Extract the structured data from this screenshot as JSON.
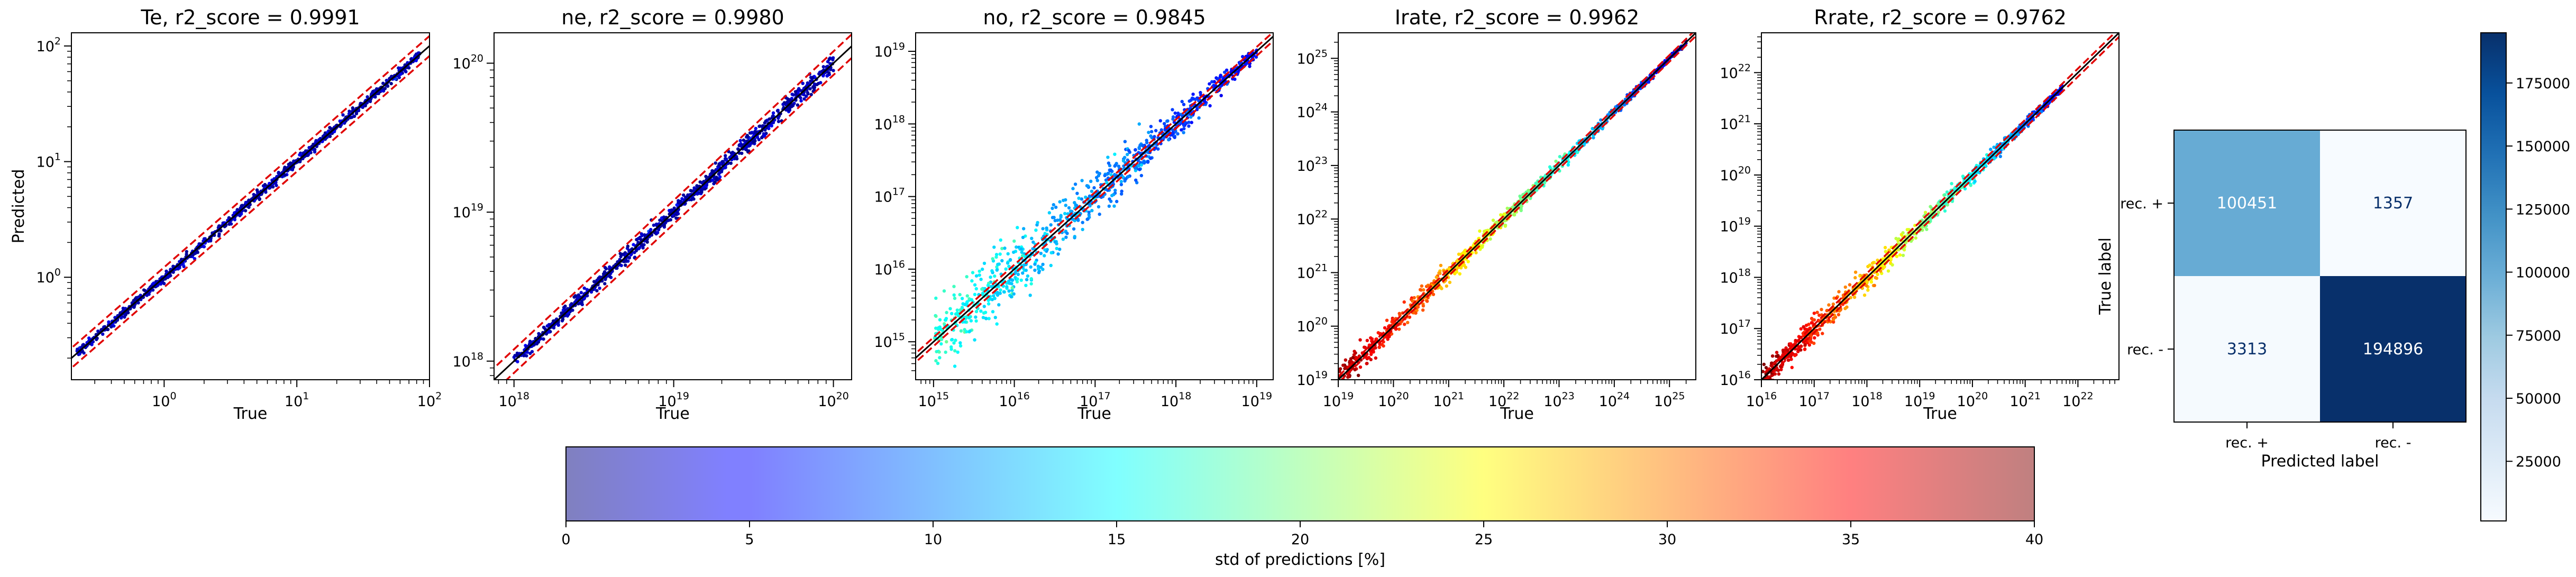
{
  "chart_data": [
    {
      "type": "scatter",
      "title": "Te, r2_score = 0.9991",
      "xlabel": "True",
      "ylabel": "Predicted",
      "xscale": "log",
      "yscale": "log",
      "xlim": [
        0.2,
        100
      ],
      "ylim": [
        0.13,
        130
      ],
      "xticks": [
        {
          "b": "10",
          "e": "0"
        },
        {
          "b": "10",
          "e": "1"
        },
        {
          "b": "10",
          "e": "2"
        }
      ],
      "yticks": [
        {
          "b": "10",
          "e": "0"
        },
        {
          "b": "10",
          "e": "1"
        },
        {
          "b": "10",
          "e": "2"
        }
      ],
      "band_factor": 1.22,
      "data_range": [
        0.22,
        85
      ],
      "spread_low": 0.03,
      "spread_high": 0.03,
      "std_low": 0.4,
      "std_high": 0.4
    },
    {
      "type": "scatter",
      "title": "ne, r2_score = 0.9980",
      "xlabel": "True",
      "ylabel": "",
      "xscale": "log",
      "yscale": "log",
      "xlim": [
        7.5e+17,
        1.3e+20
      ],
      "ylim": [
        7.5e+17,
        1.6e+20
      ],
      "xticks": [
        {
          "b": "10",
          "e": "18"
        },
        {
          "b": "10",
          "e": "19"
        },
        {
          "b": "10",
          "e": "20"
        }
      ],
      "yticks": [
        {
          "b": "10",
          "e": "18"
        },
        {
          "b": "10",
          "e": "19"
        },
        {
          "b": "10",
          "e": "20"
        }
      ],
      "band_factor": 1.2,
      "data_range": [
        1e+18,
        1e+20
      ],
      "spread_low": 0.03,
      "spread_high": 0.05,
      "std_low": 0.3,
      "std_high": 0.3
    },
    {
      "type": "scatter",
      "title": "no, r2_score = 0.9845",
      "xlabel": "True",
      "ylabel": "",
      "xscale": "log",
      "yscale": "log",
      "xlim": [
        600000000000000.0,
        1.6e+19
      ],
      "ylim": [
        300000000000000.0,
        1.8e+19
      ],
      "xticks": [
        {
          "b": "10",
          "e": "15"
        },
        {
          "b": "10",
          "e": "16"
        },
        {
          "b": "10",
          "e": "17"
        },
        {
          "b": "10",
          "e": "18"
        },
        {
          "b": "10",
          "e": "19"
        }
      ],
      "yticks": [
        {
          "b": "10",
          "e": "15"
        },
        {
          "b": "10",
          "e": "16"
        },
        {
          "b": "10",
          "e": "17"
        },
        {
          "b": "10",
          "e": "18"
        },
        {
          "b": "10",
          "e": "19"
        }
      ],
      "band_factor": 1.15,
      "data_range": [
        1000000000000000.0,
        1e+19
      ],
      "spread_low": 0.45,
      "spread_high": 0.07,
      "std_low": 15,
      "std_high": 3
    },
    {
      "type": "scatter",
      "title": "Irate, r2_score = 0.9962",
      "xlabel": "True",
      "ylabel": "",
      "xscale": "log",
      "yscale": "log",
      "xlim": [
        1e+19,
        3e+25
      ],
      "ylim": [
        1e+19,
        3e+25
      ],
      "xticks": [
        {
          "b": "10",
          "e": "19"
        },
        {
          "b": "10",
          "e": "20"
        },
        {
          "b": "10",
          "e": "21"
        },
        {
          "b": "10",
          "e": "22"
        },
        {
          "b": "10",
          "e": "23"
        },
        {
          "b": "10",
          "e": "24"
        },
        {
          "b": "10",
          "e": "25"
        }
      ],
      "yticks": [
        {
          "b": "10",
          "e": "19"
        },
        {
          "b": "10",
          "e": "20"
        },
        {
          "b": "10",
          "e": "21"
        },
        {
          "b": "10",
          "e": "22"
        },
        {
          "b": "10",
          "e": "23"
        },
        {
          "b": "10",
          "e": "24"
        },
        {
          "b": "10",
          "e": "25"
        }
      ],
      "band_factor": 1.15,
      "data_range": [
        1e+19,
        2e+25
      ],
      "spread_low": 0.2,
      "spread_high": 0.03,
      "std_low": 38,
      "std_high": 1
    },
    {
      "type": "scatter",
      "title": "Rrate, r2_score = 0.9762",
      "xlabel": "True",
      "ylabel": "",
      "xscale": "log",
      "yscale": "log",
      "xlim": [
        1e+16,
        6e+22
      ],
      "ylim": [
        1e+16,
        6e+22
      ],
      "xticks": [
        {
          "b": "10",
          "e": "16"
        },
        {
          "b": "10",
          "e": "17"
        },
        {
          "b": "10",
          "e": "18"
        },
        {
          "b": "10",
          "e": "19"
        },
        {
          "b": "10",
          "e": "20"
        },
        {
          "b": "10",
          "e": "21"
        },
        {
          "b": "10",
          "e": "22"
        }
      ],
      "yticks": [
        {
          "b": "10",
          "e": "16"
        },
        {
          "b": "10",
          "e": "17"
        },
        {
          "b": "10",
          "e": "18"
        },
        {
          "b": "10",
          "e": "19"
        },
        {
          "b": "10",
          "e": "20"
        },
        {
          "b": "10",
          "e": "21"
        },
        {
          "b": "10",
          "e": "22"
        }
      ],
      "band_factor": 1.2,
      "data_range": [
        1e+16,
        5e+21
      ],
      "spread_low": 0.25,
      "spread_high": 0.05,
      "std_low": 38,
      "std_high": 3
    },
    {
      "type": "heatmap",
      "title": "",
      "xlabel": "Predicted label",
      "ylabel": "True label",
      "x_categories": [
        "rec. +",
        "rec. -"
      ],
      "y_categories": [
        "rec. +",
        "rec. -"
      ],
      "values": [
        [
          100451,
          1357
        ],
        [
          3313,
          194896
        ]
      ],
      "value_labels": [
        [
          "100451",
          "1357"
        ],
        [
          "3313",
          "194896"
        ]
      ],
      "colorbar": {
        "range": [
          1357,
          194896
        ],
        "ticks": [
          25000,
          50000,
          75000,
          100000,
          125000,
          150000,
          175000
        ],
        "tick_labels": [
          "25000",
          "50000",
          "75000",
          "100000",
          "125000",
          "150000",
          "175000"
        ],
        "colormap": "Blues"
      }
    }
  ],
  "std_colorbar": {
    "label": "std of predictions [%]",
    "range": [
      0,
      40
    ],
    "ticks": [
      0,
      5,
      10,
      15,
      20,
      25,
      30,
      35,
      40
    ],
    "tick_labels": [
      "0",
      "5",
      "10",
      "15",
      "20",
      "25",
      "30",
      "35",
      "40"
    ],
    "colormap": "jet"
  }
}
